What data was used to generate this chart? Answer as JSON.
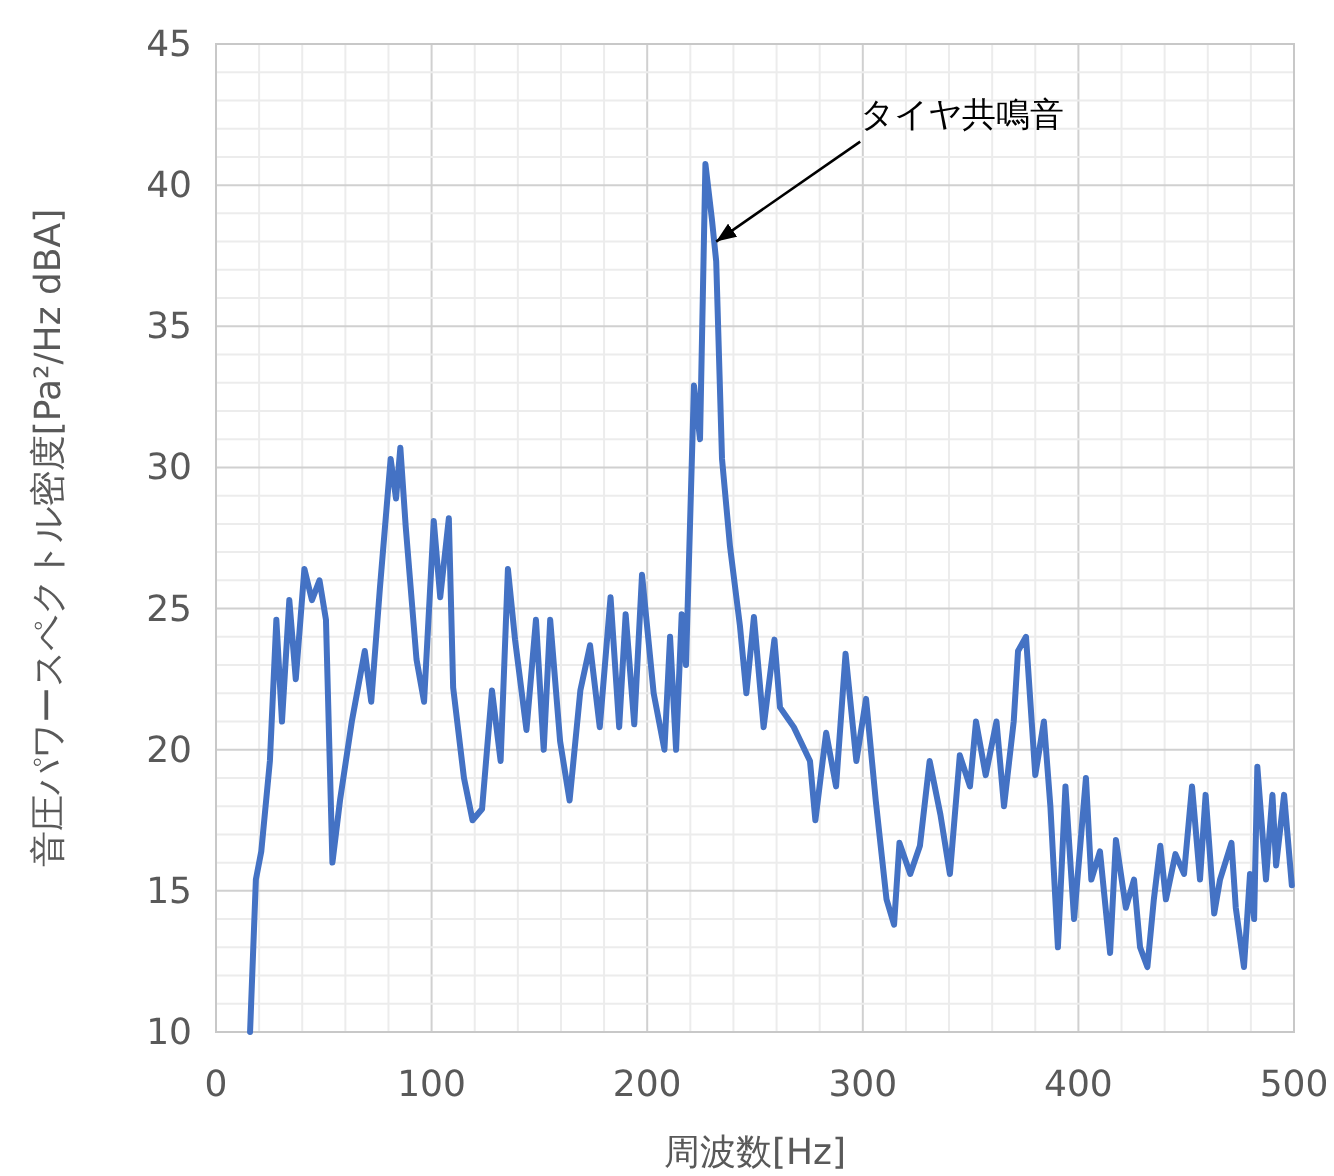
{
  "chart_data": {
    "type": "line",
    "xlabel": "周波数[Hz]",
    "ylabel": "音圧パワースペクトル密度[Pa²/Hz dBA]",
    "annotations": [
      {
        "text": "タイヤ共鳴音",
        "x": 232,
        "y": 38
      }
    ],
    "xlim": [
      0,
      500
    ],
    "xticks": [
      0,
      100,
      200,
      300,
      400,
      500
    ],
    "ylim": [
      10,
      45
    ],
    "yticks": [
      10,
      15,
      20,
      25,
      30,
      35,
      40,
      45
    ],
    "grid": true,
    "marker": "none",
    "line_style": "solid",
    "series": [
      {
        "color": "#4472c4",
        "x": [
          15.8,
          18.5,
          21,
          25,
          28,
          30.6,
          34,
          37,
          41,
          44.5,
          48,
          51,
          54,
          57.5,
          63,
          69,
          72,
          76,
          81,
          83.5,
          85.5,
          88,
          93,
          96.5,
          101,
          104,
          108,
          110,
          115,
          119,
          123.4,
          128,
          132,
          135.4,
          138.7,
          144,
          148.4,
          152,
          155,
          159.6,
          164,
          169,
          173.5,
          178,
          183,
          187,
          190,
          194,
          197.6,
          203,
          208,
          210.6,
          213.4,
          216,
          218,
          221.7,
          224.5,
          227,
          230,
          232,
          234.7,
          238.4,
          243,
          246,
          249.5,
          254,
          259,
          261.6,
          268,
          275.5,
          278,
          283,
          287.6,
          292,
          297,
          301.5,
          306,
          311,
          314.5,
          317,
          322,
          326.5,
          331,
          336,
          340.4,
          345,
          349.7,
          352.5,
          357,
          362,
          365.5,
          370,
          372,
          375.7,
          380,
          384,
          387,
          390.5,
          394,
          398,
          403.5,
          406,
          410,
          414.7,
          417.4,
          422,
          425.8,
          428.6,
          432,
          435,
          438,
          440.6,
          445,
          449,
          452.7,
          456.4,
          459,
          463,
          465.7,
          471,
          473,
          476.8,
          479.6,
          481.5,
          483,
          487,
          490,
          491.7,
          495.4,
          499
        ],
        "values": [
          10,
          15.4,
          16.4,
          19.6,
          24.6,
          21,
          25.3,
          22.5,
          26.4,
          25.3,
          26,
          24.6,
          16,
          18.2,
          21,
          23.5,
          21.7,
          25.7,
          30.3,
          28.9,
          30.7,
          27.9,
          23.2,
          21.7,
          28.1,
          25.4,
          28.2,
          22.2,
          19,
          17.5,
          17.9,
          22.1,
          19.6,
          26.4,
          23.9,
          20.7,
          24.6,
          20,
          24.6,
          20.3,
          18.2,
          22.1,
          23.7,
          20.8,
          25.4,
          20.8,
          24.8,
          20.9,
          26.2,
          22,
          20,
          24,
          20,
          24.8,
          23,
          32.9,
          31,
          40.75,
          38.8,
          37.3,
          30.3,
          27.2,
          24.4,
          22,
          24.7,
          20.8,
          23.9,
          21.5,
          20.8,
          19.6,
          17.5,
          20.6,
          18.7,
          23.4,
          19.6,
          21.8,
          18.2,
          14.7,
          13.8,
          16.7,
          15.6,
          16.6,
          19.6,
          17.7,
          15.6,
          19.8,
          18.7,
          21,
          19.1,
          21,
          18,
          21,
          23.5,
          24,
          19.1,
          21,
          18,
          13,
          18.7,
          14,
          19,
          15.4,
          16.4,
          12.8,
          16.8,
          14.4,
          15.4,
          13,
          12.3,
          14.7,
          16.6,
          14.7,
          16.3,
          15.6,
          18.7,
          15.4,
          18.4,
          14.2,
          15.4,
          16.7,
          14.4,
          12.3,
          15.6,
          14,
          19.4,
          15.4,
          18.4,
          15.9,
          18.4,
          15.2
        ]
      }
    ]
  }
}
